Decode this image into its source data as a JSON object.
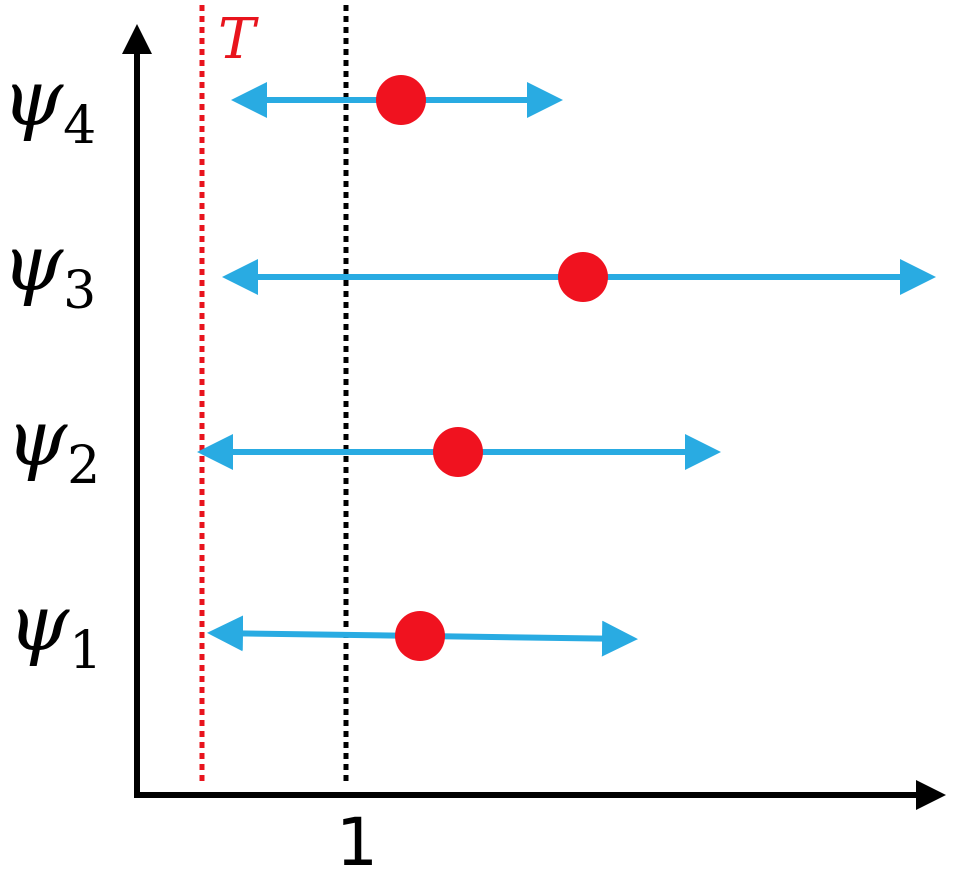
{
  "threshold_label": "T",
  "x_axis_label": "1",
  "rows": [
    {
      "symbol": "ψ",
      "subscript": "4"
    },
    {
      "symbol": "ψ",
      "subscript": "3"
    },
    {
      "symbol": "ψ",
      "subscript": "2"
    },
    {
      "symbol": "ψ",
      "subscript": "1"
    }
  ]
}
